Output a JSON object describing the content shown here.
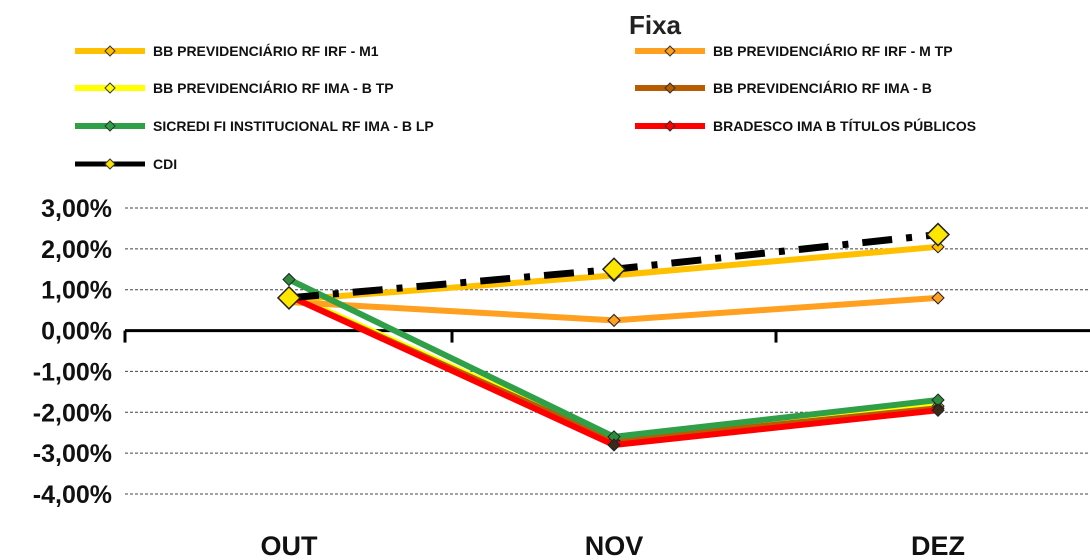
{
  "chart_data": {
    "type": "line",
    "title": "Fixa",
    "categories": [
      "OUT",
      "NOV",
      "DEZ"
    ],
    "ylim": [
      -4,
      3
    ],
    "yticks": [
      "3,00%",
      "2,00%",
      "1,00%",
      "0,00%",
      "-1,00%",
      "-2,00%",
      "-3,00%",
      "-4,00%"
    ],
    "grid": true,
    "legend_position": "top",
    "series": [
      {
        "name": "BB PREVIDENCIÁRIO RF IRF - M1",
        "color": "#FFC000",
        "values": [
          0.75,
          1.35,
          2.05
        ],
        "style": "solid"
      },
      {
        "name": "BB PREVIDENCIÁRIO RF IRF - M TP",
        "color": "#FFA020",
        "values": [
          0.7,
          0.25,
          0.8
        ],
        "style": "solid"
      },
      {
        "name": "BB PREVIDENCIÁRIO RF IMA - B TP",
        "color": "#FFFF00",
        "values": [
          0.9,
          -2.65,
          -1.85
        ],
        "style": "solid"
      },
      {
        "name": "BB PREVIDENCIÁRIO RF IMA - B",
        "color": "#B85C00",
        "values": [
          0.85,
          -2.7,
          -1.9
        ],
        "style": "solid"
      },
      {
        "name": "SICREDI FI INSTITUCIONAL RF IMA - B LP",
        "color": "#30A048",
        "values": [
          1.25,
          -2.6,
          -1.7
        ],
        "style": "solid"
      },
      {
        "name": "BRADESCO IMA B TÍTULOS PÚBLICOS",
        "color": "#FF0000",
        "values": [
          0.85,
          -2.8,
          -1.95
        ],
        "style": "solid"
      },
      {
        "name": "CDI",
        "color": "#000000",
        "values": [
          0.8,
          1.5,
          2.35
        ],
        "style": "dashdot"
      }
    ]
  }
}
